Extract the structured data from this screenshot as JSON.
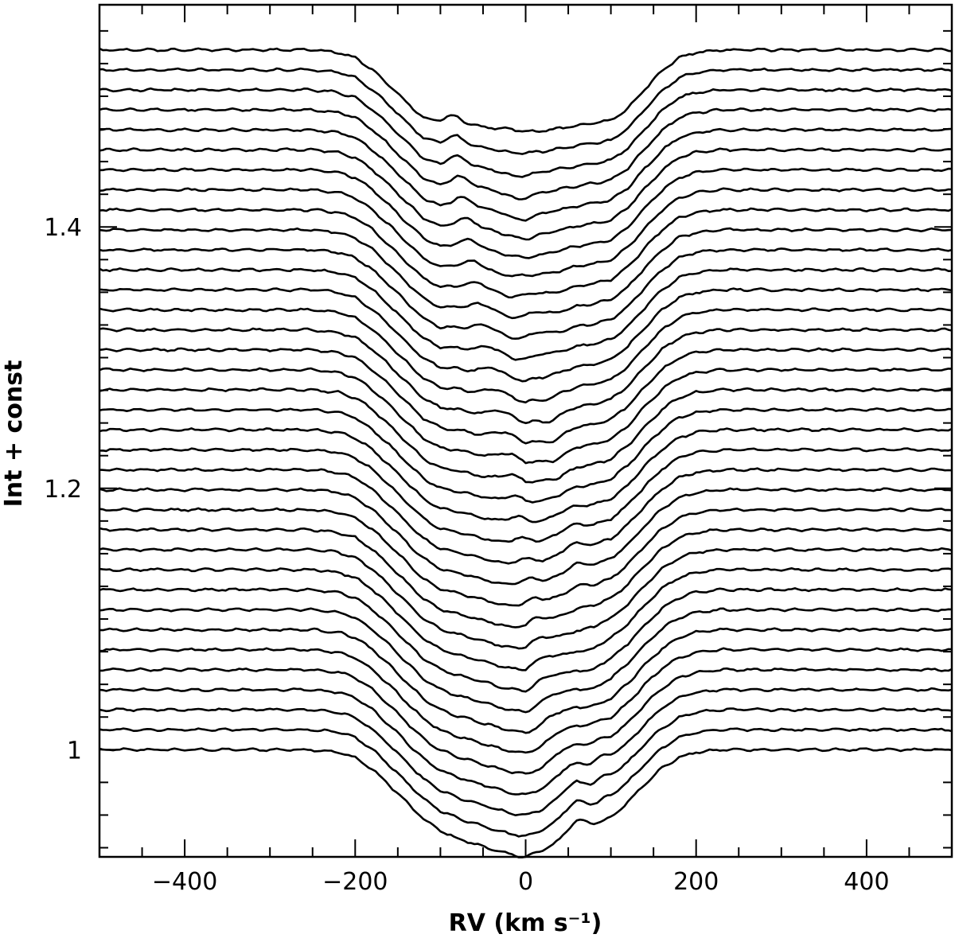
{
  "chart_data": {
    "type": "line",
    "title": "",
    "xlabel": "RV (km s⁻¹)",
    "ylabel": "Int + const",
    "xlim": [
      -500,
      500
    ],
    "ylim": [
      0.918,
      1.57
    ],
    "x_ticks": [
      -400,
      -200,
      0,
      200,
      400
    ],
    "x_tick_labels": [
      "−400",
      "−200",
      "0",
      "200",
      "400"
    ],
    "y_ticks": [
      1.0,
      1.2,
      1.4
    ],
    "y_tick_labels": [
      "1",
      "1.2",
      "1.4"
    ],
    "grid": false,
    "legend": "none",
    "line_color": "#000000",
    "n_profiles": 36,
    "offset_step": 0.0153,
    "first_continuum": 1.0,
    "profile": {
      "rv": [
        -500,
        -250,
        -220,
        -200,
        -180,
        -160,
        -140,
        -120,
        -100,
        -80,
        -60,
        -40,
        -20,
        0,
        20,
        40,
        60,
        80,
        100,
        120,
        140,
        160,
        180,
        200,
        230,
        500
      ],
      "depth_bottom": [
        0,
        0,
        0.002,
        0.006,
        0.015,
        0.027,
        0.04,
        0.053,
        0.062,
        0.068,
        0.072,
        0.076,
        0.08,
        0.082,
        0.077,
        0.07,
        0.06,
        0.058,
        0.052,
        0.04,
        0.026,
        0.014,
        0.006,
        0.002,
        0,
        0
      ],
      "depth_top": [
        0,
        0,
        0.002,
        0.006,
        0.015,
        0.027,
        0.04,
        0.052,
        0.058,
        0.056,
        0.058,
        0.06,
        0.062,
        0.063,
        0.062,
        0.06,
        0.058,
        0.056,
        0.054,
        0.045,
        0.03,
        0.016,
        0.006,
        0.002,
        0,
        0
      ]
    }
  }
}
